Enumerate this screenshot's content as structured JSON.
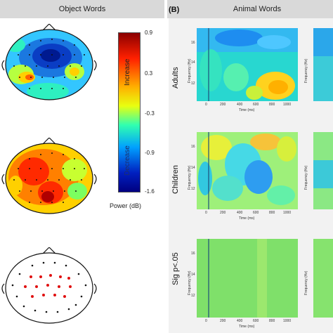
{
  "left_title": "Object Words",
  "panel_b_label": "(B)",
  "right_title": "Animal Words",
  "row_labels": [
    "Adults",
    "Children",
    "Sig p<.05"
  ],
  "colorbar": {
    "ticks": [
      "0.9",
      "0.3",
      "-0.3",
      "-0.9",
      "-1.6"
    ],
    "increase_label": "Increase",
    "decrease_label": "Decrease",
    "unit_label": "Power (dB)",
    "colors": [
      "#8b0000",
      "#ff2000",
      "#ffb000",
      "#e8ff10",
      "#30ffb0",
      "#00a0ff",
      "#0020c0",
      "#000080"
    ]
  },
  "tf_plot": {
    "ylabel": "Frequency (Hz)",
    "xlabel": "Time (ms)",
    "yticks": [
      "16",
      "14",
      "12"
    ],
    "xticks": [
      "0",
      "200",
      "400",
      "600",
      "800",
      "1000"
    ]
  }
}
